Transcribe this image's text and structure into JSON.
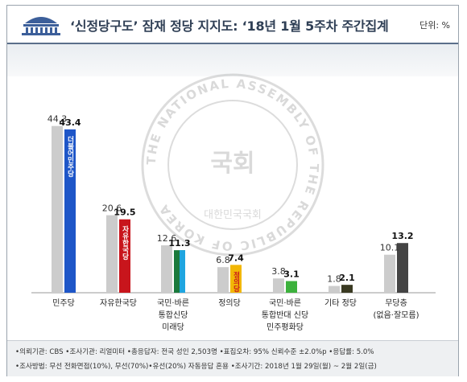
{
  "header": {
    "title": "‘신정당구도’ 잠재 정당 지지도: ‘18년 1월 5주차 주간집계",
    "unit": "단위: %"
  },
  "colors": {
    "baseline_bar": "#cccccc",
    "header_blue": "#2f3f55",
    "minjoo": "#1e56c8",
    "jayu": "#c8151c",
    "bareun": "#1a7a3c",
    "bareun_accent": "#1fa5e0",
    "justice": "#f2b705",
    "pyunghwa": "#3cb13c",
    "other": "#3a3a22",
    "none": "#444444"
  },
  "icons": [
    "national-assembly-logo-icon",
    "national-assembly-seal-watermark-icon"
  ],
  "watermark": {
    "ring_text": "THE NATIONAL ASSEMBLY OF THE REPUBLIC OF KOREA",
    "center_text": "국회",
    "lower_text": "대한민국국회"
  },
  "chart_data": {
    "type": "bar",
    "categories": [
      "민주당",
      "자유한국당",
      "국민·바른 통합신당 미래당",
      "정의당",
      "국민·바른 통합반대 신당 민주평화당",
      "기타 정당",
      "무당층 (없음·잘모름)"
    ],
    "category_lines": [
      [
        "민주당"
      ],
      [
        "자유한국당"
      ],
      [
        "국민·바른",
        "통합신당",
        "미래당"
      ],
      [
        "정의당"
      ],
      [
        "국민·바른",
        "통합반대 신당",
        "민주평화당"
      ],
      [
        "기타 정당"
      ],
      [
        "무당층",
        "(없음·잘모름)"
      ]
    ],
    "series": [
      {
        "values": [
          44.3,
          20.6,
          12.6,
          6.8,
          3.8,
          1.8,
          10.1
        ]
      },
      {
        "values": [
          43.4,
          19.5,
          11.3,
          7.4,
          3.1,
          2.1,
          13.2
        ]
      }
    ],
    "bar_labels": [
      "더불어민주당",
      "자유한국당",
      "",
      "정의당",
      "",
      "",
      ""
    ],
    "ylim": [
      0,
      50
    ]
  },
  "notes": [
    "•의뢰기관: CBS  •조사기관: 리얼미터  •총응답자: 전국 성인 2,503명  •표집오차: 95% 신뢰수준 ±2.0%p  •응답률: 5.0%",
    "•조사방법: 무선 전화면접(10%), 무선(70%)•유선(20%) 자동응답 혼용  •조사기간: 2018년 1월 29일(월) ~ 2월 2일(금)"
  ]
}
